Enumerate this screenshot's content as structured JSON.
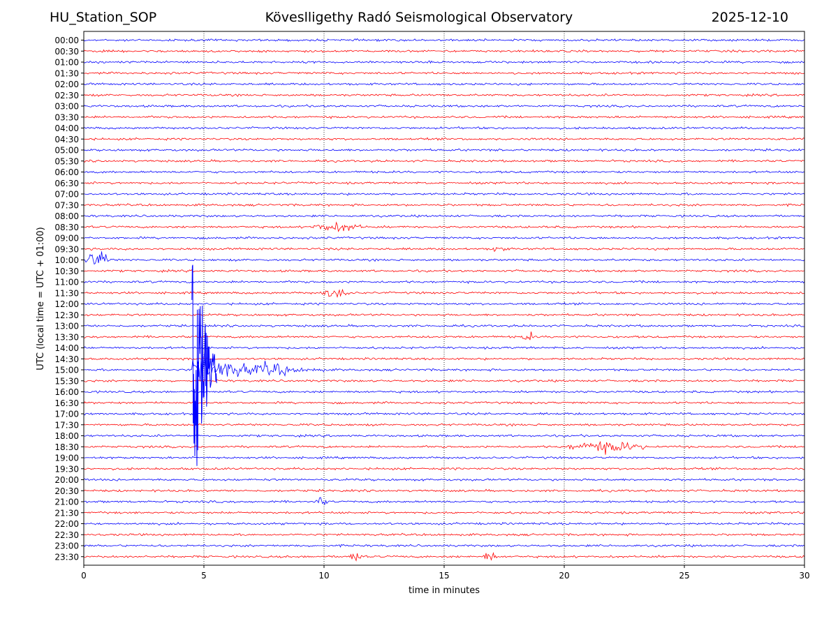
{
  "header": {
    "station": "HU_Station_SOP",
    "title": "Köveslligethy Radó Seismological Observatory",
    "date": "2025-12-10"
  },
  "chart_data": {
    "type": "line",
    "title": "Köveslligethy Radó Seismological Observatory",
    "xlabel": "time in minutes",
    "ylabel": "UTC (local time = UTC + 01:00)",
    "xlim": [
      0,
      30
    ],
    "x_ticks": [
      0,
      5,
      10,
      15,
      20,
      25,
      30
    ],
    "grid": "vertical dotted",
    "trace_colors": [
      "#0000ff",
      "#ff0000"
    ],
    "rows": [
      "00:00",
      "00:30",
      "01:00",
      "01:30",
      "02:00",
      "02:30",
      "03:00",
      "03:30",
      "04:00",
      "04:30",
      "05:00",
      "05:30",
      "06:00",
      "06:30",
      "07:00",
      "07:30",
      "08:00",
      "08:30",
      "09:00",
      "09:30",
      "10:00",
      "10:30",
      "11:00",
      "11:30",
      "12:00",
      "12:30",
      "13:00",
      "13:30",
      "14:00",
      "14:30",
      "15:00",
      "15:30",
      "16:00",
      "16:30",
      "17:00",
      "17:30",
      "18:00",
      "18:30",
      "19:00",
      "19:30",
      "20:00",
      "20:30",
      "21:00",
      "21:30",
      "22:00",
      "22:30",
      "23:00",
      "23:30"
    ],
    "events": [
      {
        "row": "08:30",
        "start_min": 9.3,
        "end_min": 11.8,
        "amplitude": 0.35
      },
      {
        "row": "09:30",
        "start_min": 17.0,
        "end_min": 17.6,
        "amplitude": 0.35
      },
      {
        "row": "10:00",
        "start_min": 0.0,
        "end_min": 1.2,
        "amplitude": 0.8
      },
      {
        "row": "11:30",
        "start_min": 9.8,
        "end_min": 11.2,
        "amplitude": 0.35
      },
      {
        "row": "13:30",
        "start_min": 18.2,
        "end_min": 18.8,
        "amplitude": 0.4
      },
      {
        "row": "15:00",
        "start_min": 4.5,
        "end_min": 10.0,
        "amplitude": 6.0
      },
      {
        "row": "18:30",
        "start_min": 19.9,
        "end_min": 23.6,
        "amplitude": 0.45
      },
      {
        "row": "21:00",
        "start_min": 9.6,
        "end_min": 10.2,
        "amplitude": 0.35
      },
      {
        "row": "23:30",
        "start_min": 11.0,
        "end_min": 11.6,
        "amplitude": 0.45
      },
      {
        "row": "23:30",
        "start_min": 16.6,
        "end_min": 17.2,
        "amplitude": 0.45
      }
    ]
  }
}
